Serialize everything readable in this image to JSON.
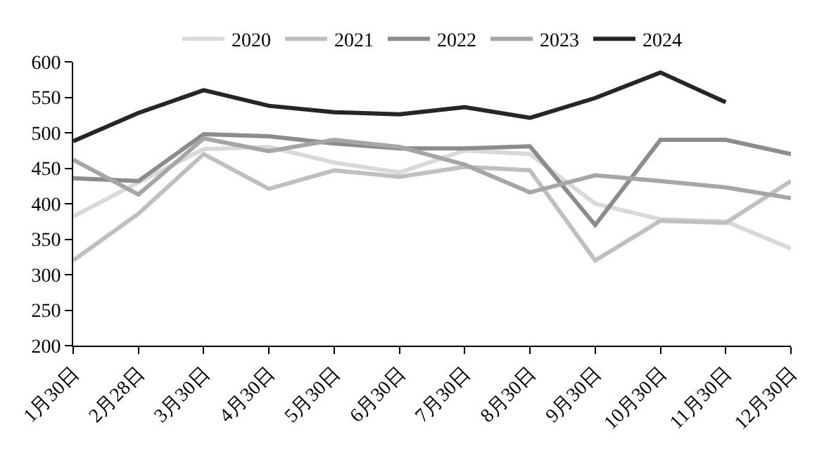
{
  "chart_data": {
    "type": "line",
    "categories": [
      "1月30日",
      "2月28日",
      "3月30日",
      "4月30日",
      "5月30日",
      "6月30日",
      "7月30日",
      "8月30日",
      "9月30日",
      "10月30日",
      "11月30日",
      "12月30日"
    ],
    "series": [
      {
        "name": "2020",
        "color": "#d9d9d9",
        "values": [
          382,
          430,
          477,
          480,
          458,
          444,
          475,
          470,
          400,
          378,
          375,
          337
        ]
      },
      {
        "name": "2021",
        "color": "#bfbfbf",
        "values": [
          320,
          386,
          470,
          421,
          447,
          438,
          452,
          447,
          320,
          376,
          373,
          432
        ]
      },
      {
        "name": "2022",
        "color": "#8c8c8c",
        "values": [
          436,
          432,
          498,
          495,
          485,
          478,
          478,
          481,
          370,
          490,
          490,
          470
        ]
      },
      {
        "name": "2023",
        "color": "#a6a6a6",
        "values": [
          462,
          413,
          492,
          474,
          490,
          480,
          455,
          416,
          440,
          432,
          423,
          408
        ]
      },
      {
        "name": "2024",
        "color": "#262626",
        "values": [
          488,
          528,
          560,
          538,
          529,
          526,
          536,
          521,
          549,
          585,
          543,
          null
        ]
      }
    ],
    "ylim": [
      200,
      600
    ],
    "yticks": [
      200,
      250,
      300,
      350,
      400,
      450,
      500,
      550,
      600
    ],
    "grid": false,
    "legend": "top",
    "marker": "none",
    "line_style": "solid"
  }
}
